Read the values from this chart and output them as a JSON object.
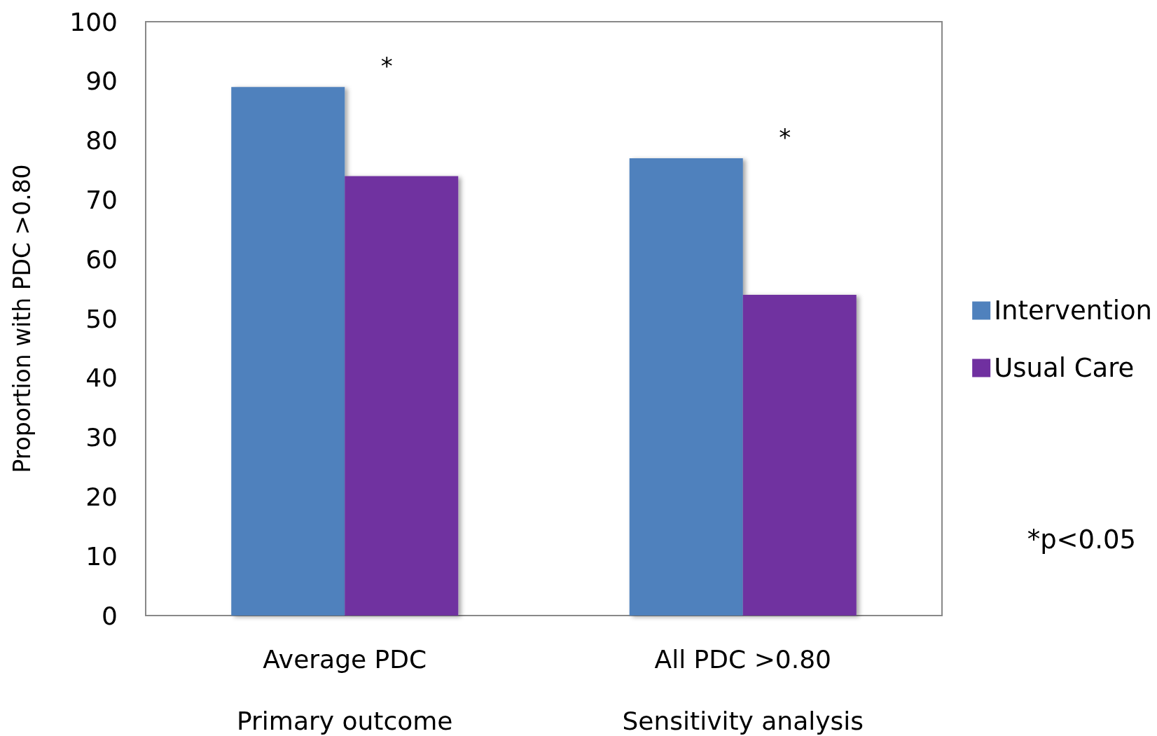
{
  "chart_data": {
    "type": "bar",
    "ylabel": "Proportion with PDC >0.80",
    "categories": [
      "Average PDC\n\nPrimary outcome",
      "All PDC >0.80\n\nSensitivity analysis"
    ],
    "series": [
      {
        "name": "Intervention",
        "color": "#4f81bd",
        "values": [
          89,
          77
        ]
      },
      {
        "name": "Usual Care",
        "color": "#7030a0",
        "values": [
          74,
          54
        ]
      }
    ],
    "ylim": [
      0,
      100
    ],
    "yticks": [
      0,
      10,
      20,
      30,
      40,
      50,
      60,
      70,
      80,
      90,
      100
    ],
    "grid": false,
    "legend": "right",
    "annotations": [
      "*",
      "*",
      "*p<0.05"
    ]
  }
}
